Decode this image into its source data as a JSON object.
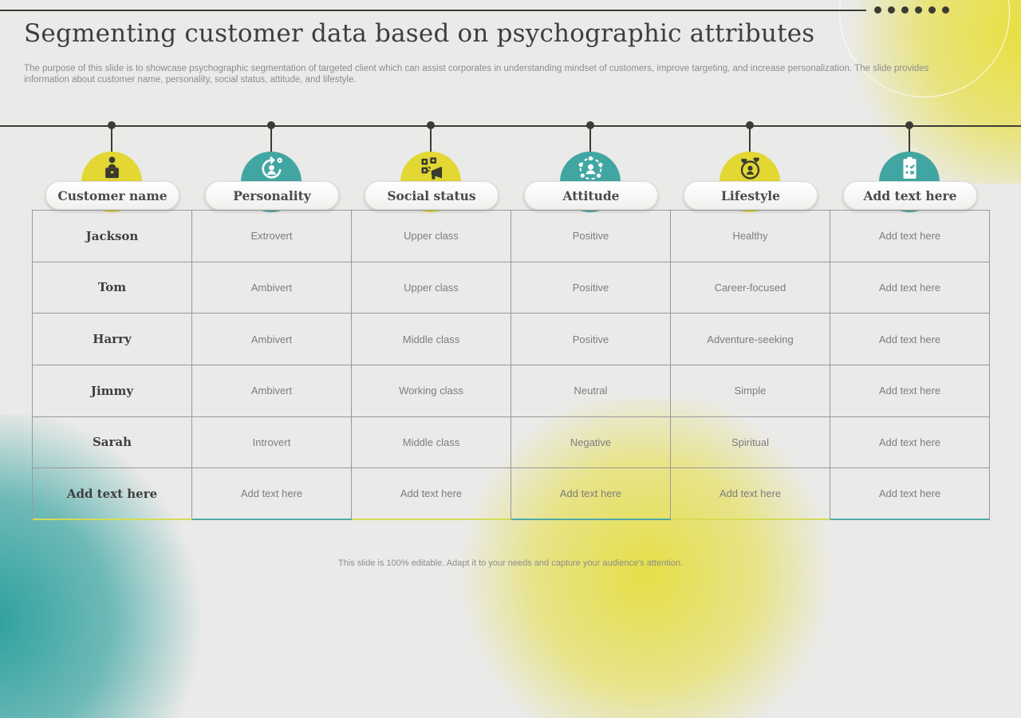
{
  "slide": {
    "title": "Segmenting customer data based on psychographic attributes",
    "subtitle": "The purpose of this slide is to showcase psychographic segmentation of targeted client which can assist corporates in understanding mindset of customers, improve targeting, and increase personalization. The slide provides information about customer name, personality, social status, attitude, and lifestyle.",
    "footer": "This slide is 100% editable. Adapt it to your needs and capture your audience's attention."
  },
  "colors": {
    "yellow": "#e2d733",
    "teal": "#41a6a2",
    "accent_yellow": "#d4dc55",
    "accent_teal": "#4fa9a5",
    "dark": "#3b3b36"
  },
  "decor": {
    "header_dots_count": 6
  },
  "columns": [
    {
      "label": "Customer name",
      "color": "yellow",
      "icon": "podium-person-icon"
    },
    {
      "label": "Personality",
      "color": "teal",
      "icon": "person-refresh-icon"
    },
    {
      "label": "Social status",
      "color": "yellow",
      "icon": "megaphone-currency-icon"
    },
    {
      "label": "Attitude",
      "color": "teal",
      "icon": "person-network-icon"
    },
    {
      "label": "Lifestyle",
      "color": "yellow",
      "icon": "heart-face-icon"
    },
    {
      "label": "Add text here",
      "color": "teal",
      "icon": "clipboard-check-icon"
    }
  ],
  "table": {
    "rows": [
      [
        "Jackson",
        "Extrovert",
        "Upper class",
        "Positive",
        "Healthy",
        "Add text here"
      ],
      [
        "Tom",
        "Ambivert",
        "Upper class",
        "Positive",
        "Career-focused",
        "Add text here"
      ],
      [
        "Harry",
        "Ambivert",
        "Middle class",
        "Positive",
        "Adventure-seeking",
        "Add text here"
      ],
      [
        "Jimmy",
        "Ambivert",
        "Working class",
        "Neutral",
        "Simple",
        "Add text here"
      ],
      [
        "Sarah",
        "Introvert",
        "Middle class",
        "Negative",
        "Spiritual",
        "Add text here"
      ],
      [
        "Add text here",
        "Add text here",
        "Add text here",
        "Add text here",
        "Add text here",
        "Add text here"
      ]
    ]
  }
}
